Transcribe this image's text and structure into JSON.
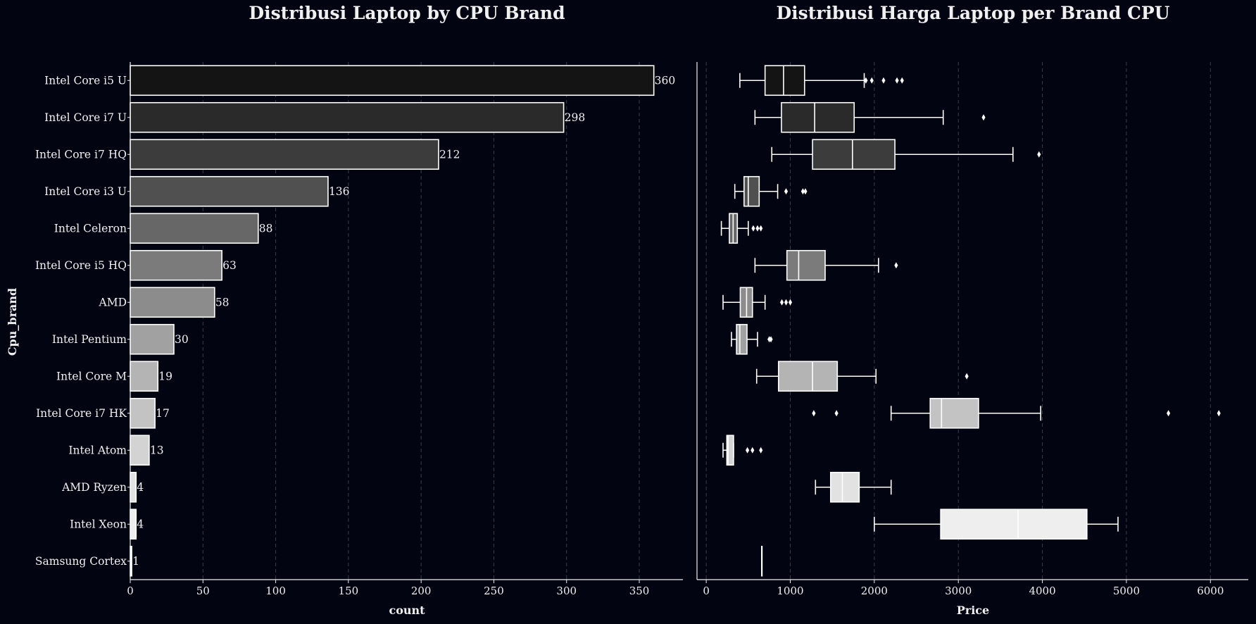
{
  "chart_data": [
    {
      "type": "bar",
      "orientation": "horizontal",
      "title": "Distribusi Laptop by CPU Brand",
      "xlabel": "count",
      "ylabel": "Cpu_brand",
      "xlim": [
        0,
        380
      ],
      "xticks": [
        0,
        50,
        100,
        150,
        200,
        250,
        300,
        350
      ],
      "categories": [
        "Intel Core i5 U",
        "Intel Core i7 U",
        "Intel Core i7 HQ",
        "Intel Core i3 U",
        "Intel Celeron",
        "Intel Core i5 HQ",
        "AMD",
        "Intel Pentium",
        "Intel Core M",
        "Intel Core i7 HK",
        "Intel Atom",
        "AMD Ryzen",
        "Intel Xeon",
        "Samsung Cortex"
      ],
      "values": [
        360,
        298,
        212,
        136,
        88,
        63,
        58,
        30,
        19,
        17,
        13,
        4,
        4,
        1
      ],
      "colors": [
        "#141414",
        "#2a2a2a",
        "#3c3c3c",
        "#505050",
        "#676767",
        "#7b7b7b",
        "#8c8c8c",
        "#a1a1a1",
        "#b4b4b4",
        "#c3c3c3",
        "#d3d3d3",
        "#e2e2e2",
        "#eeeeee",
        "#fbfbfb"
      ],
      "grid": "vertical dashed"
    },
    {
      "type": "box",
      "orientation": "horizontal",
      "title": "Distribusi Harga Laptop per Brand CPU",
      "xlabel": "Price",
      "xlim": [
        -110,
        6450
      ],
      "xticks": [
        0,
        1000,
        2000,
        3000,
        4000,
        5000,
        6000
      ],
      "categories": [
        "Intel Core i5 U",
        "Intel Core i7 U",
        "Intel Core i7 HQ",
        "Intel Core i3 U",
        "Intel Celeron",
        "Intel Core i5 HQ",
        "AMD",
        "Intel Pentium",
        "Intel Core M",
        "Intel Core i7 HK",
        "Intel Atom",
        "AMD Ryzen",
        "Intel Xeon",
        "Samsung Cortex"
      ],
      "boxes": [
        {
          "whisker_low": 400,
          "q1": 700,
          "median": 920,
          "q3": 1170,
          "whisker_high": 1880,
          "outliers": [
            1900,
            1970,
            2110,
            2270,
            2330
          ]
        },
        {
          "whisker_low": 580,
          "q1": 895,
          "median": 1290,
          "q3": 1760,
          "whisker_high": 2820,
          "outliers": [
            3300
          ]
        },
        {
          "whisker_low": 780,
          "q1": 1265,
          "median": 1740,
          "q3": 2245,
          "whisker_high": 3650,
          "outliers": [
            3960
          ]
        },
        {
          "whisker_low": 340,
          "q1": 450,
          "median": 500,
          "q3": 630,
          "whisker_high": 850,
          "outliers": [
            950,
            1150,
            1180
          ]
        },
        {
          "whisker_low": 180,
          "q1": 275,
          "median": 320,
          "q3": 370,
          "whisker_high": 500,
          "outliers": [
            560,
            610,
            650
          ]
        },
        {
          "whisker_low": 580,
          "q1": 960,
          "median": 1100,
          "q3": 1415,
          "whisker_high": 2050,
          "outliers": [
            2260
          ]
        },
        {
          "whisker_low": 200,
          "q1": 405,
          "median": 480,
          "q3": 550,
          "whisker_high": 700,
          "outliers": [
            900,
            950,
            1000
          ]
        },
        {
          "whisker_low": 300,
          "q1": 360,
          "median": 400,
          "q3": 485,
          "whisker_high": 610,
          "outliers": [
            750,
            770
          ]
        },
        {
          "whisker_low": 600,
          "q1": 860,
          "median": 1265,
          "q3": 1560,
          "whisker_high": 2020,
          "outliers": [
            3100
          ]
        },
        {
          "whisker_low": 2200,
          "q1": 2665,
          "median": 2800,
          "q3": 3240,
          "whisker_high": 3980,
          "outliers": [
            1280,
            1550,
            5500,
            6100
          ]
        },
        {
          "whisker_low": 200,
          "q1": 245,
          "median": 260,
          "q3": 325,
          "whisker_high": 325,
          "outliers": [
            490,
            550,
            650
          ]
        },
        {
          "whisker_low": 1300,
          "q1": 1480,
          "median": 1620,
          "q3": 1820,
          "whisker_high": 2200,
          "outliers": []
        },
        {
          "whisker_low": 2000,
          "q1": 2790,
          "median": 3710,
          "q3": 4530,
          "whisker_high": 4900,
          "outliers": []
        },
        {
          "whisker_low": 660,
          "q1": 660,
          "median": 660,
          "q3": 660,
          "whisker_high": 660,
          "outliers": []
        }
      ],
      "colors": [
        "#141414",
        "#2a2a2a",
        "#3c3c3c",
        "#505050",
        "#676767",
        "#7b7b7b",
        "#8c8c8c",
        "#a1a1a1",
        "#b4b4b4",
        "#c3c3c3",
        "#d3d3d3",
        "#e2e2e2",
        "#eeeeee",
        "#fbfbfb"
      ],
      "grid": "vertical dashed"
    }
  ],
  "style": {
    "background": "#020412",
    "text_color": "#f0f0f0",
    "grid_color": "#3a3d4a",
    "edge_color": "#ffffff"
  }
}
